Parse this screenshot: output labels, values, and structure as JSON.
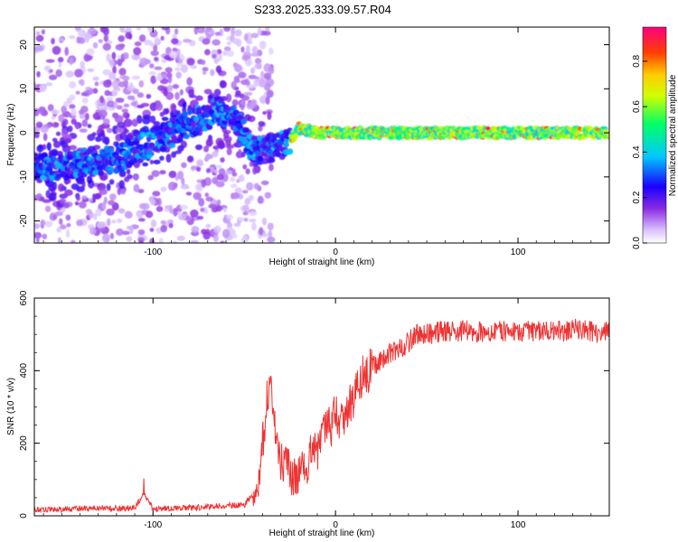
{
  "title": "S233.2025.333.09.57.R04",
  "chart_data": [
    {
      "type": "heatmap",
      "title": "S233.2025.333.09.57.R04",
      "xlabel": "Height of straight line (km)",
      "ylabel": "Frequency (Hz)",
      "xlim": [
        -165,
        150
      ],
      "ylim": [
        -25,
        24
      ],
      "x_ticks": [
        "-100",
        "0",
        "100"
      ],
      "x_tick_values": [
        -100,
        0,
        100
      ],
      "y_ticks": [
        "-20",
        "-10",
        "0",
        "10",
        "20"
      ],
      "y_tick_values": [
        -20,
        -10,
        0,
        10,
        20
      ],
      "colorbar": {
        "label": "Normalized spectral amplitude",
        "range": [
          0,
          0.95
        ],
        "ticks": [
          "0.0",
          "0.2",
          "0.4",
          "0.6",
          "0.8"
        ],
        "tick_values": [
          0,
          0.2,
          0.4,
          0.6,
          0.8
        ],
        "colors": [
          "#ffffff",
          "#d9c2ff",
          "#8a2be2",
          "#1a00ff",
          "#00c8ff",
          "#00ff66",
          "#cfff00",
          "#ffcc00",
          "#ff4000",
          "#ff0080"
        ]
      },
      "ridge": [
        {
          "x": -165,
          "y": -8
        },
        {
          "x": -140,
          "y": -7
        },
        {
          "x": -120,
          "y": -6
        },
        {
          "x": -100,
          "y": -2
        },
        {
          "x": -80,
          "y": 2
        },
        {
          "x": -65,
          "y": 5
        },
        {
          "x": -55,
          "y": 3
        },
        {
          "x": -45,
          "y": -4
        },
        {
          "x": -35,
          "y": -4
        },
        {
          "x": -25,
          "y": -2
        },
        {
          "x": -20,
          "y": 1
        },
        {
          "x": -10,
          "y": 0
        },
        {
          "x": 0,
          "y": 0
        },
        {
          "x": 50,
          "y": 0
        },
        {
          "x": 100,
          "y": 0
        },
        {
          "x": 150,
          "y": 0
        }
      ]
    },
    {
      "type": "line",
      "xlabel": "Height of straight line (km)",
      "ylabel": "SNR (10 * v/v)",
      "xlim": [
        -165,
        150
      ],
      "ylim": [
        0,
        600
      ],
      "x_ticks": [
        "-100",
        "0",
        "100"
      ],
      "x_tick_values": [
        -100,
        0,
        100
      ],
      "y_ticks": [
        "0",
        "200",
        "400",
        "600"
      ],
      "y_tick_values": [
        0,
        200,
        400,
        600
      ],
      "color": "#ee3333",
      "series": [
        {
          "x": [
            -165,
            -150,
            -140,
            -130,
            -120,
            -110,
            -105,
            -100,
            -90,
            -80,
            -70,
            -60,
            -50,
            -45,
            -42,
            -40,
            -38,
            -36,
            -34,
            -32,
            -30,
            -28,
            -26,
            -24,
            -22,
            -20,
            -18,
            -16,
            -14,
            -12,
            -10,
            -8,
            -6,
            -4,
            -2,
            0,
            2,
            4,
            6,
            8,
            10,
            12,
            14,
            16,
            18,
            20,
            25,
            30,
            35,
            40,
            45,
            50,
            60,
            70,
            80,
            90,
            100,
            110,
            120,
            130,
            140,
            150
          ],
          "values": [
            15,
            18,
            20,
            22,
            20,
            22,
            60,
            20,
            20,
            22,
            25,
            28,
            30,
            60,
            110,
            200,
            300,
            360,
            280,
            200,
            150,
            140,
            130,
            110,
            120,
            110,
            120,
            130,
            160,
            200,
            180,
            220,
            230,
            240,
            250,
            280,
            260,
            270,
            290,
            310,
            330,
            350,
            380,
            390,
            400,
            410,
            430,
            450,
            460,
            480,
            500,
            500,
            510,
            510,
            505,
            510,
            505,
            510,
            505,
            515,
            510,
            505
          ]
        }
      ]
    }
  ]
}
